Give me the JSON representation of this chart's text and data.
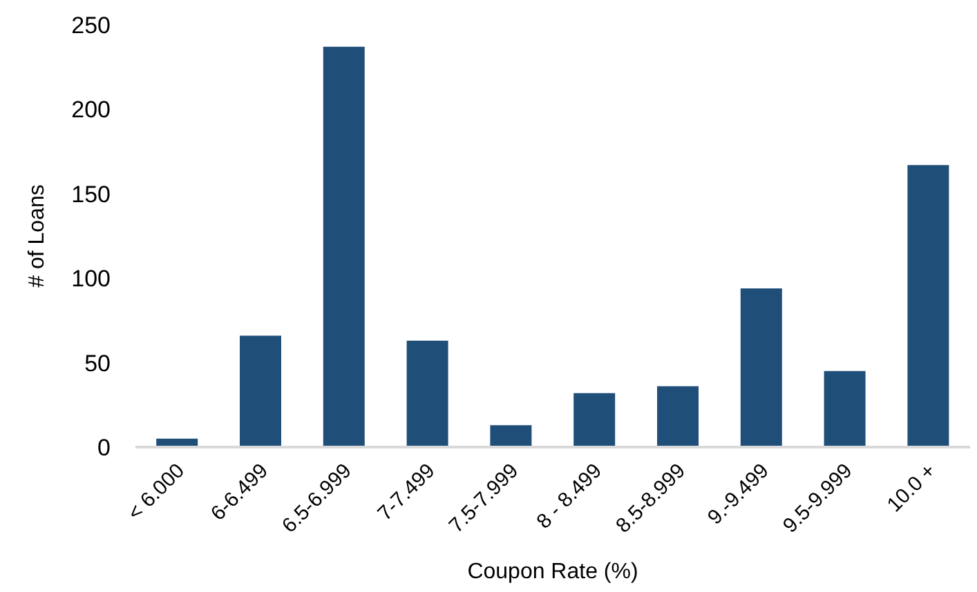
{
  "chart_data": {
    "type": "bar",
    "xlabel": "Coupon Rate (%)",
    "ylabel": "# of Loans",
    "categories": [
      "< 6.000",
      "6-6.499",
      "6.5-6.999",
      "7-7.499",
      "7.5-7.999",
      "8 - 8.499",
      "8.5-8.999",
      "9.-9.499",
      "9.5-9.999",
      "10.0 +"
    ],
    "values": [
      5,
      66,
      237,
      63,
      13,
      32,
      36,
      94,
      45,
      167
    ],
    "color": "#1f4e79",
    "ylim": [
      0,
      250
    ],
    "yticks": [
      0,
      50,
      100,
      150,
      200,
      250
    ],
    "grid": false,
    "legend": false
  }
}
